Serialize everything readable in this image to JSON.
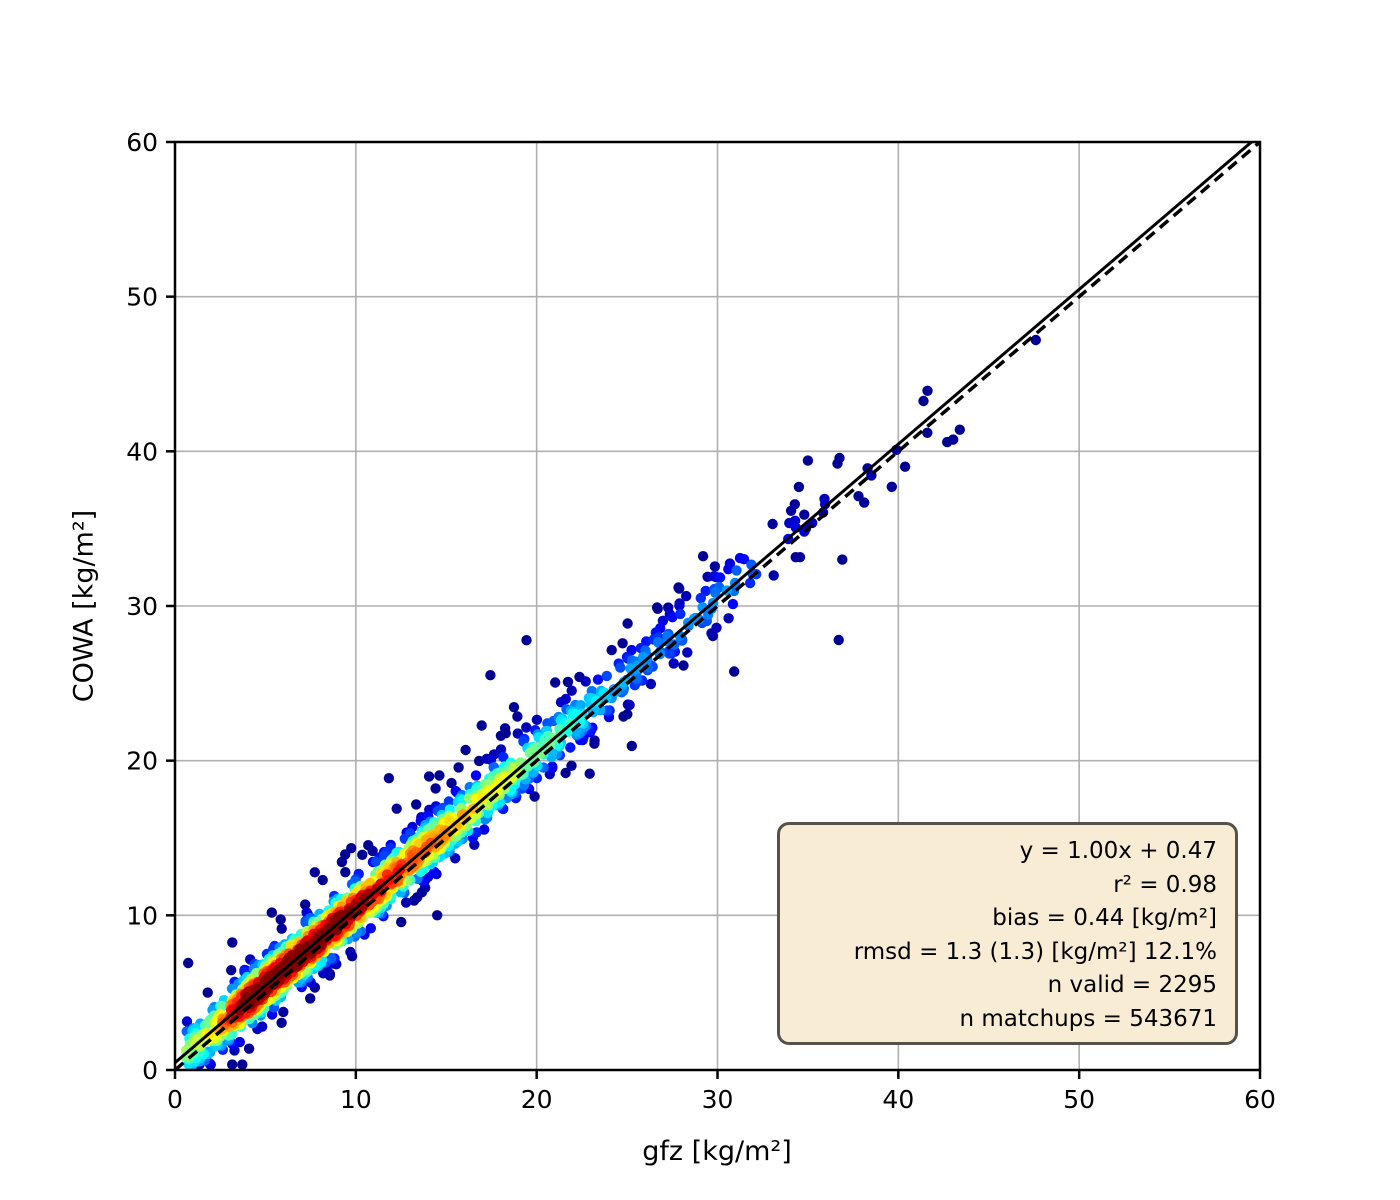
{
  "figure": {
    "background": "#ffffff",
    "xlabel": "gfz [kg/m²]",
    "ylabel": "COWA [kg/m²]"
  },
  "stats_box": {
    "background": "#f8ecd4",
    "border_color": "#55524a",
    "lines": {
      "fit": "y = 1.00x + 0.47",
      "r2": "r² = 0.98",
      "bias": "bias = 0.44 [kg/m²]",
      "rmsd": "rmsd = 1.3 (1.3) [kg/m²] 12.1%",
      "n_valid": "n valid = 2295",
      "n_matchups": "n matchups = 543671"
    }
  },
  "chart_data": {
    "type": "scatter",
    "title": "",
    "xlabel": "gfz [kg/m2]",
    "ylabel": "COWA [kg/m2]",
    "xlim": [
      0,
      60
    ],
    "ylim": [
      0,
      60
    ],
    "ticks": [
      0,
      10,
      20,
      30,
      40,
      50,
      60
    ],
    "grid": true,
    "grid_color": "#b0b0b0",
    "identity_line": {
      "style": "dashed",
      "color": "#000000",
      "from": [
        0,
        0
      ],
      "to": [
        60,
        60
      ]
    },
    "fit_line": {
      "style": "solid",
      "color": "#000000",
      "slope": 1.0,
      "intercept": 0.47
    },
    "stats": {
      "slope": 1.0,
      "intercept": 0.47,
      "r2": 0.98,
      "bias_kg_m2": 0.44,
      "rmsd_kg_m2": 1.3,
      "rmsd_rel_kg_m2": 1.3,
      "rmsd_pct": 12.1,
      "n_valid": 2295,
      "n_matchups": 543671
    },
    "colormap": "jet",
    "density_colored": true,
    "point_radius_px": 5.2,
    "scatter_model": {
      "seed": 42,
      "n_points_rendered": 1600,
      "x_segments": [
        [
          0.5,
          3,
          0.07
        ],
        [
          3,
          6,
          0.2
        ],
        [
          6,
          9,
          0.19
        ],
        [
          9,
          12,
          0.14
        ],
        [
          12,
          15,
          0.1
        ],
        [
          15,
          18,
          0.08
        ],
        [
          18,
          21,
          0.065
        ],
        [
          21,
          24,
          0.05
        ],
        [
          24,
          27,
          0.035
        ],
        [
          27,
          32,
          0.042
        ],
        [
          32,
          36,
          0.013
        ],
        [
          36,
          44,
          0.005
        ]
      ],
      "noise_sigma_base": 0.75,
      "noise_sigma_slope": 0.018,
      "wide_noise_fraction": 0.09,
      "wide_noise_factor": 2.6,
      "density_anchors": [
        [
          0,
          0.45
        ],
        [
          2,
          0.6
        ],
        [
          3,
          0.8
        ],
        [
          4,
          1.0
        ],
        [
          9,
          1.0
        ],
        [
          11,
          0.88
        ],
        [
          13,
          0.78
        ],
        [
          15,
          0.7
        ],
        [
          17,
          0.62
        ],
        [
          19,
          0.52
        ],
        [
          21,
          0.44
        ],
        [
          23,
          0.36
        ],
        [
          25,
          0.28
        ],
        [
          27,
          0.25
        ],
        [
          29,
          0.26
        ],
        [
          31,
          0.27
        ],
        [
          32,
          0.2
        ],
        [
          33,
          0.14
        ],
        [
          35,
          0.08
        ],
        [
          38,
          0.05
        ],
        [
          48,
          0.03
        ]
      ]
    },
    "outlier_points": [
      [
        36.7,
        27.8
      ],
      [
        47.6,
        47.2
      ],
      [
        43.4,
        41.4
      ],
      [
        41.6,
        41.2
      ],
      [
        39.9,
        40.1
      ],
      [
        35.0,
        39.4
      ],
      [
        34.5,
        37.7
      ],
      [
        37.8,
        37.1
      ],
      [
        38.3,
        38.9
      ],
      [
        36.9,
        33.0
      ],
      [
        14.5,
        10.0
      ],
      [
        34.8,
        35.9
      ],
      [
        42.7,
        40.6
      ]
    ]
  }
}
